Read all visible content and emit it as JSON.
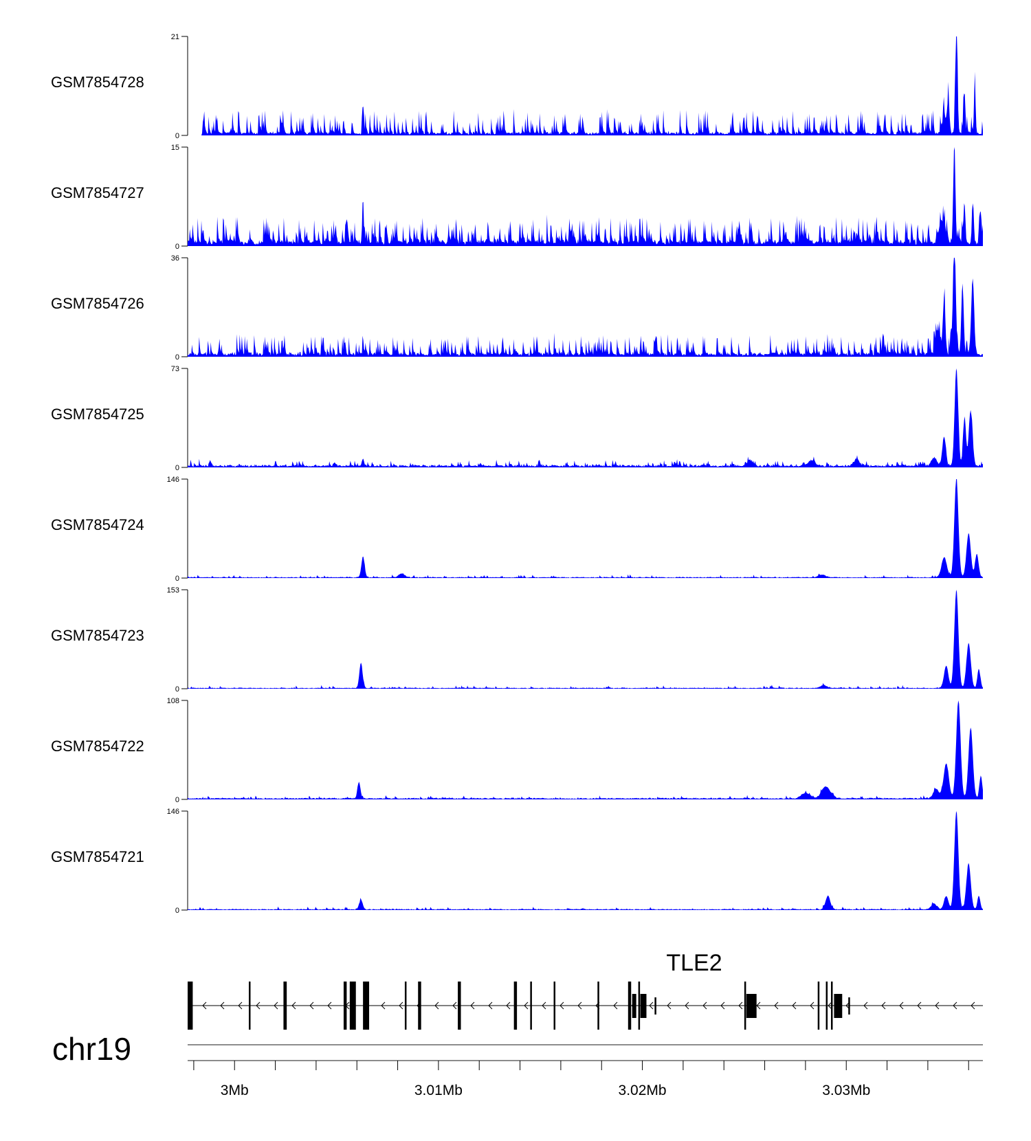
{
  "chart_data": {
    "type": "area",
    "chromosome": "chr19",
    "x_range_bp": [
      2997700,
      3036700
    ],
    "series_color": "#0000ff",
    "tracks": [
      {
        "name": "GSM7854728",
        "ymax": 21,
        "ymin_label": "0",
        "ymax_label": "21",
        "baseline": 0.4,
        "noise": 0.6,
        "spike_rate": 0.18,
        "spike_scale": 0.17,
        "peaks": [
          [
            3006300,
            6,
            45
          ],
          [
            3035400,
            21,
            70
          ],
          [
            3035000,
            6.5,
            80
          ],
          [
            3035800,
            8,
            60
          ],
          [
            3036300,
            11,
            50
          ],
          [
            3034800,
            3,
            150
          ]
        ],
        "start_bp": 2998400
      },
      {
        "name": "GSM7854727",
        "ymax": 15,
        "ymin_label": "0",
        "ymax_label": "15",
        "baseline": 0.5,
        "noise": 0.8,
        "spike_rate": 0.22,
        "spike_scale": 0.18,
        "peaks": [
          [
            3006300,
            7,
            50
          ],
          [
            3035300,
            15,
            70
          ],
          [
            3035800,
            6,
            60
          ],
          [
            3036200,
            6,
            60
          ],
          [
            3036600,
            4,
            60
          ],
          [
            3034700,
            3,
            200
          ]
        ],
        "start_bp": 2997700
      },
      {
        "name": "GSM7854726",
        "ymax": 36,
        "ymin_label": "0",
        "ymax_label": "36",
        "baseline": 0.8,
        "noise": 1.2,
        "spike_rate": 0.2,
        "spike_scale": 0.14,
        "peaks": [
          [
            3035300,
            36,
            100
          ],
          [
            3034800,
            20,
            80
          ],
          [
            3035700,
            26,
            80
          ],
          [
            3036200,
            28,
            100
          ],
          [
            3034500,
            8,
            150
          ]
        ],
        "start_bp": 2997700
      },
      {
        "name": "GSM7854725",
        "ymax": 73,
        "ymin_label": "0",
        "ymax_label": "73",
        "baseline": 1.0,
        "noise": 1.5,
        "spike_rate": 0.1,
        "spike_scale": 0.04,
        "peaks": [
          [
            2998800,
            5,
            60
          ],
          [
            3006300,
            5,
            80
          ],
          [
            3035400,
            73,
            120
          ],
          [
            3034800,
            22,
            120
          ],
          [
            3036100,
            41,
            130
          ],
          [
            3035800,
            35,
            100
          ],
          [
            3034300,
            6,
            200
          ],
          [
            3025300,
            4,
            200
          ],
          [
            3028300,
            4,
            250
          ],
          [
            3030500,
            5,
            200
          ]
        ],
        "start_bp": 2997700
      },
      {
        "name": "GSM7854724",
        "ymax": 146,
        "ymin_label": "0",
        "ymax_label": "146",
        "baseline": 1.0,
        "noise": 1.2,
        "spike_rate": 0.06,
        "spike_scale": 0.02,
        "peaks": [
          [
            3006300,
            31,
            110
          ],
          [
            3008200,
            6,
            200
          ],
          [
            3035400,
            146,
            140
          ],
          [
            3034800,
            30,
            180
          ],
          [
            3036000,
            65,
            150
          ],
          [
            3036400,
            35,
            120
          ],
          [
            3028800,
            4,
            250
          ]
        ],
        "start_bp": 2997700
      },
      {
        "name": "GSM7854723",
        "ymax": 153,
        "ymin_label": "0",
        "ymax_label": "153",
        "baseline": 1.0,
        "noise": 1.2,
        "spike_rate": 0.06,
        "spike_scale": 0.02,
        "peaks": [
          [
            3006200,
            40,
            110
          ],
          [
            3035400,
            153,
            140
          ],
          [
            3034900,
            35,
            150
          ],
          [
            3036000,
            70,
            150
          ],
          [
            3036500,
            30,
            100
          ],
          [
            3028900,
            4,
            250
          ]
        ],
        "start_bp": 2997700
      },
      {
        "name": "GSM7854722",
        "ymax": 108,
        "ymin_label": "0",
        "ymax_label": "108",
        "baseline": 1.0,
        "noise": 1.3,
        "spike_rate": 0.06,
        "spike_scale": 0.02,
        "peaks": [
          [
            3006100,
            18,
            100
          ],
          [
            3029000,
            13,
            300
          ],
          [
            3028000,
            6,
            300
          ],
          [
            3035500,
            108,
            150
          ],
          [
            3034900,
            38,
            180
          ],
          [
            3036100,
            78,
            150
          ],
          [
            3036600,
            25,
            100
          ],
          [
            3034400,
            10,
            200
          ]
        ],
        "start_bp": 2997700
      },
      {
        "name": "GSM7854721",
        "ymax": 146,
        "ymin_label": "0",
        "ymax_label": "146",
        "baseline": 1.0,
        "noise": 1.2,
        "spike_rate": 0.05,
        "spike_scale": 0.02,
        "peaks": [
          [
            3006200,
            14,
            120
          ],
          [
            3029100,
            20,
            160
          ],
          [
            3035400,
            146,
            140
          ],
          [
            3034900,
            20,
            150
          ],
          [
            3036000,
            68,
            150
          ],
          [
            3036500,
            20,
            100
          ],
          [
            3034300,
            8,
            200
          ]
        ],
        "start_bp": 2997700
      }
    ],
    "gene": {
      "name": "TLE2",
      "strand": "-",
      "line_bp": [
        2997700,
        3036700
      ],
      "exons": [
        [
          2997700,
          2997950,
          "tall"
        ],
        [
          3000700,
          3000780,
          "tall"
        ],
        [
          3002400,
          3002560,
          "tall"
        ],
        [
          3005350,
          3005500,
          "tall"
        ],
        [
          3005650,
          3005950,
          "tall"
        ],
        [
          3006300,
          3006600,
          "tall"
        ],
        [
          3008350,
          3008420,
          "tall"
        ],
        [
          3009000,
          3009150,
          "tall"
        ],
        [
          3010950,
          3011100,
          "tall"
        ],
        [
          3013700,
          3013850,
          "tall"
        ],
        [
          3014500,
          3014570,
          "tall"
        ],
        [
          3015650,
          3015720,
          "tall"
        ],
        [
          3017800,
          3017860,
          "tall"
        ],
        [
          3019300,
          3019450,
          "tall"
        ],
        [
          3019500,
          3019700,
          "mid"
        ],
        [
          3019800,
          3019870,
          "tall"
        ],
        [
          3019900,
          3020200,
          "mid"
        ],
        [
          3020600,
          3020650,
          "short"
        ],
        [
          3025000,
          3025060,
          "tall"
        ],
        [
          3025100,
          3025600,
          "mid"
        ],
        [
          3028600,
          3028660,
          "tall"
        ],
        [
          3029000,
          3029060,
          "tall"
        ],
        [
          3029250,
          3029320,
          "tall"
        ],
        [
          3029400,
          3029800,
          "mid"
        ],
        [
          3030100,
          3030150,
          "short"
        ]
      ]
    },
    "axis": {
      "ticks_bp": [
        2998000,
        3000000,
        3002000,
        3004000,
        3006000,
        3008000,
        3010000,
        3012000,
        3014000,
        3016000,
        3018000,
        3020000,
        3022000,
        3024000,
        3026000,
        3028000,
        3030000,
        3032000,
        3034000,
        3036000
      ],
      "major_ticks": [
        {
          "bp": 3000000,
          "label": "3Mb"
        },
        {
          "bp": 3010000,
          "label": "3.01Mb"
        },
        {
          "bp": 3020000,
          "label": "3.02Mb"
        },
        {
          "bp": 3030000,
          "label": "3.03Mb"
        }
      ]
    }
  }
}
